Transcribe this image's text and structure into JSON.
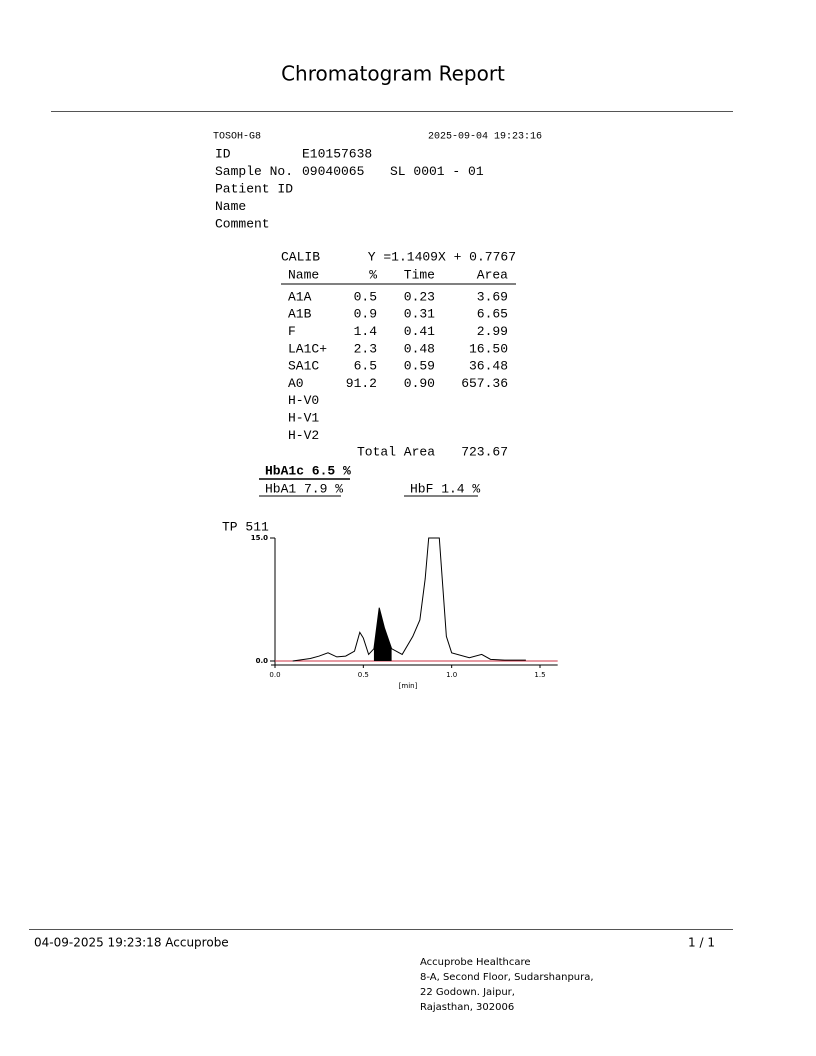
{
  "header": {
    "title": "Chromatogram Report"
  },
  "report": {
    "instrument": "TOSOH-G8",
    "datetime": "2025-09-04 19:23:16",
    "fields": [
      {
        "label": "ID",
        "value": "E10157638"
      },
      {
        "label": "Sample No.",
        "value": "09040065",
        "extra": "SL 0001 - 01"
      },
      {
        "label": "Patient ID"
      },
      {
        "label": "Name"
      },
      {
        "label": "Comment"
      }
    ],
    "calib": {
      "label": "CALIB",
      "equation": "Y =1.1409X + 0.7767"
    },
    "table": {
      "columns": [
        "Name",
        "%",
        "Time",
        "Area"
      ],
      "rows": [
        [
          "A1A",
          "0.5",
          "0.23",
          "3.69"
        ],
        [
          "A1B",
          "0.9",
          "0.31",
          "6.65"
        ],
        [
          "F",
          "1.4",
          "0.41",
          "2.99"
        ],
        [
          "LA1C+",
          "2.3",
          "0.48",
          "16.50"
        ],
        [
          "SA1C",
          "6.5",
          "0.59",
          "36.48"
        ],
        [
          "A0",
          "91.2",
          "0.90",
          "657.36"
        ],
        [
          "H-V0"
        ],
        [
          "H-V1"
        ],
        [
          "H-V2"
        ]
      ],
      "total": {
        "label": "Total Area",
        "value": "723.67"
      }
    },
    "summary": {
      "hba1c": "HbA1c 6.5 %",
      "hba1": "HbA1 7.9 %",
      "hbf": "HbF 1.4 %"
    }
  },
  "chart_data": {
    "type": "line",
    "title": "TP 511",
    "x_label": "[min]",
    "x": [
      0.1,
      0.2,
      0.25,
      0.3,
      0.35,
      0.4,
      0.45,
      0.48,
      0.5,
      0.53,
      0.56,
      0.59,
      0.62,
      0.66,
      0.72,
      0.78,
      0.82,
      0.85,
      0.87,
      0.93,
      0.95,
      0.97,
      1.0,
      1.1,
      1.17,
      1.22,
      1.3,
      1.42
    ],
    "values": [
      0.0,
      0.3,
      0.6,
      1.0,
      0.5,
      0.6,
      1.2,
      3.5,
      2.8,
      0.8,
      1.5,
      6.5,
      4.0,
      1.5,
      0.8,
      3.0,
      5.0,
      10.0,
      15.0,
      15.0,
      9.0,
      3.0,
      1.0,
      0.4,
      0.8,
      0.2,
      0.1,
      0.1
    ],
    "color": "#000000",
    "baseline_color": "#cc3344",
    "fill_range": [
      0.55,
      0.68
    ],
    "xlim": [
      0,
      1.6
    ],
    "ylim": [
      0,
      15
    ],
    "xticks": [
      {
        "value": 0,
        "label": "0.0"
      },
      0.5,
      {
        "value": 1,
        "label": "1.0"
      },
      1.5
    ],
    "yticks": [
      {
        "value": 0,
        "label": "0.0"
      },
      {
        "value": 15,
        "label": "15.0"
      }
    ]
  },
  "footer": {
    "printed": "04-09-2025 19:23:18  Accuprobe",
    "page": "1 / 1",
    "address": [
      "Accuprobe Healthcare",
      "8-A, Second Floor, Sudarshanpura,",
      "22 Godown. Jaipur,",
      "Rajasthan, 302006"
    ]
  }
}
